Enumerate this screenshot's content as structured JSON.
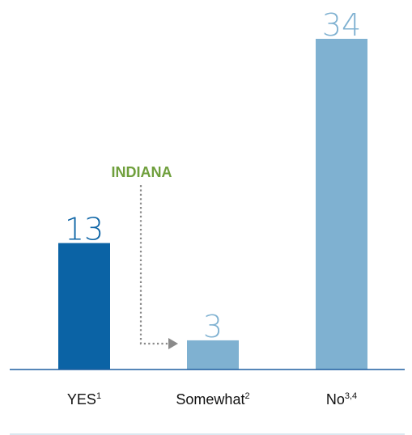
{
  "chart_data": {
    "type": "bar",
    "categories": [
      "YES",
      "Somewhat",
      "No"
    ],
    "category_superscripts": [
      "1",
      "2",
      "3,4"
    ],
    "values": [
      13,
      3,
      34
    ],
    "highlight_index": 0,
    "annotation": {
      "text": "INDIANA",
      "from_category": "YES",
      "to_category": "Somewhat"
    },
    "ylim": [
      0,
      34
    ],
    "grid": false,
    "legend": "none"
  },
  "colors": {
    "highlight_bar": "#0b63a5",
    "bar": "#7fb1d1",
    "highlight_label": "#0b63a5",
    "label": "#7fb1d1",
    "annotation_text": "#6f9f3c",
    "arrow": "#8a8a8a",
    "axis": "#1f5fa0",
    "bottom_rule": "#cfe0ec"
  }
}
